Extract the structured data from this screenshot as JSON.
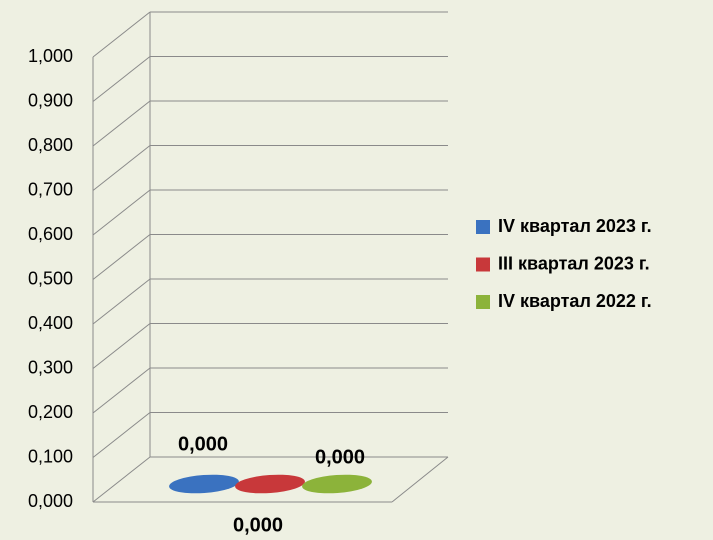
{
  "chart_data": {
    "type": "bar",
    "categories": [
      null
    ],
    "series": [
      {
        "name": "IV квартал 2023 г.",
        "color": "#3a72c0",
        "values": [
          0
        ],
        "value_labels": [
          "0,000"
        ]
      },
      {
        "name": "III квартал 2023 г.",
        "color": "#c8383a",
        "values": [
          0
        ],
        "value_labels": [
          "0,000"
        ]
      },
      {
        "name": "IV квартал 2022 г.",
        "color": "#8cb33a",
        "values": [
          0
        ],
        "value_labels": [
          "0,000"
        ]
      }
    ],
    "ylim": [
      0,
      1
    ],
    "yticks": [
      {
        "value": 0,
        "label": "0,000"
      },
      {
        "value": 0.1,
        "label": "0,100"
      },
      {
        "value": 0.2,
        "label": "0,200"
      },
      {
        "value": 0.3,
        "label": "0,300"
      },
      {
        "value": 0.4,
        "label": "0,400"
      },
      {
        "value": 0.5,
        "label": "0,500"
      },
      {
        "value": 0.6,
        "label": "0,600"
      },
      {
        "value": 0.7,
        "label": "0,700"
      },
      {
        "value": 0.8,
        "label": "0,800"
      },
      {
        "value": 0.9,
        "label": "0,900"
      },
      {
        "value": 1,
        "label": "1,000"
      }
    ],
    "grid": true,
    "legend": "right"
  }
}
